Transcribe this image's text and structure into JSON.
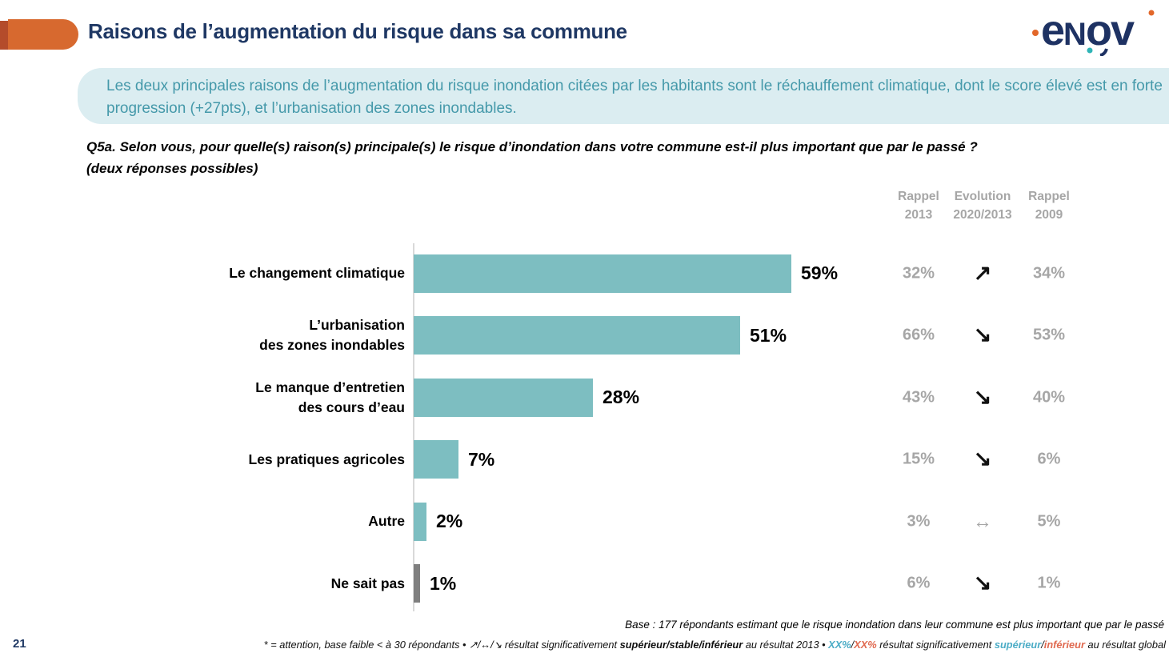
{
  "slide": {
    "title": "Raisons de l’augmentation du risque dans sa commune",
    "page_number": "21"
  },
  "logo": {
    "name": "enov",
    "navy": "#1E3263",
    "orange": "#E2672A",
    "teal": "#2FB4B6"
  },
  "summary": {
    "text": "Les deux principales raisons de l’augmentation du risque inondation citées par les habitants sont le réchauffement climatique, dont le score élevé est en forte progression (+27pts), et l’urbanisation des zones inondables."
  },
  "question": {
    "line1": "Q5a. Selon vous, pour quelle(s) raison(s) principale(s) le risque d’inondation dans votre commune est-il plus important que par le passé ?",
    "line2": "(deux réponses possibles)"
  },
  "table_headers": [
    {
      "line1": "Rappel",
      "line2": "2013"
    },
    {
      "line1": "Evolution",
      "line2": "2020/2013"
    },
    {
      "line1": "Rappel",
      "line2": "2009"
    }
  ],
  "chart_data": {
    "type": "bar",
    "orientation": "horizontal",
    "title": "Q5a. Raisons principales de l’augmentation du risque d’inondation",
    "categories": [
      "Le changement climatique",
      "L’urbanisation des zones inondables",
      "Le manque d’entretien des cours d’eau",
      "Les pratiques agricoles",
      "Autre",
      "Ne sait pas"
    ],
    "values": [
      59,
      51,
      28,
      7,
      2,
      1
    ],
    "value_labels": [
      "59%",
      "51%",
      "28%",
      "7%",
      "2%",
      "1%"
    ],
    "series": [
      {
        "name": "2020",
        "values": [
          59,
          51,
          28,
          7,
          2,
          1
        ]
      },
      {
        "name": "Rappel 2013",
        "values": [
          32,
          66,
          43,
          15,
          3,
          6
        ]
      },
      {
        "name": "Rappel 2009",
        "values": [
          34,
          53,
          40,
          6,
          5,
          1
        ]
      }
    ],
    "evolution_2020_vs_2013": [
      "up",
      "down",
      "down",
      "down",
      "stable",
      "down"
    ],
    "xlim": [
      0,
      62
    ],
    "grid": false,
    "bar_color": "#7DBEC1",
    "bar_color_last": "#7F7F7F",
    "xlabel": "",
    "ylabel": ""
  },
  "rows": [
    {
      "label1": "Le changement climatique",
      "label2": "",
      "pct": "59%",
      "bar_class": "bar teal",
      "r2013": "32%",
      "evo": "↗",
      "evo_class": "evo up",
      "r2009": "34%"
    },
    {
      "label1": "L’urbanisation",
      "label2": "des zones inondables",
      "pct": "51%",
      "bar_class": "bar teal",
      "r2013": "66%",
      "evo": "↘",
      "evo_class": "evo down",
      "r2009": "53%"
    },
    {
      "label1": "Le manque d’entretien",
      "label2": "des cours d’eau",
      "pct": "28%",
      "bar_class": "bar teal",
      "r2013": "43%",
      "evo": "↘",
      "evo_class": "evo down",
      "r2009": "40%"
    },
    {
      "label1": "Les pratiques agricoles",
      "label2": "",
      "pct": "7%",
      "bar_class": "bar teal",
      "r2013": "15%",
      "evo": "↘",
      "evo_class": "evo down",
      "r2009": "6%"
    },
    {
      "label1": "Autre",
      "label2": "",
      "pct": "2%",
      "bar_class": "bar teal",
      "r2013": "3%",
      "evo": "↔",
      "evo_class": "evo stable",
      "r2009": "5%"
    },
    {
      "label1": "Ne sait pas",
      "label2": "",
      "pct": "1%",
      "bar_class": "bar gray",
      "r2013": "6%",
      "evo": "↘",
      "evo_class": "evo down",
      "r2009": "1%"
    }
  ],
  "footer": {
    "base": "Base : 177 répondants estimant que le risque inondation dans leur commune est plus important que par le passé",
    "page_number": "21",
    "legend_segments": [
      {
        "t": "* = attention, base faible < à 30 répondants • ",
        "s": "p"
      },
      {
        "t": "↗/↔/↘",
        "s": "p"
      },
      {
        "t": " résultat significativement ",
        "s": "p"
      },
      {
        "t": "supérieur/stable/",
        "s": "b"
      },
      {
        "t": "inférieur",
        "s": "b"
      },
      {
        "t": " au résultat 2013 • ",
        "s": "p"
      },
      {
        "t": "XX%",
        "s": "t"
      },
      {
        "t": "/",
        "s": "p"
      },
      {
        "t": "XX%",
        "s": "s"
      },
      {
        "t": " résultat significativement ",
        "s": "p"
      },
      {
        "t": "supérieur",
        "s": "t"
      },
      {
        "t": "/",
        "s": "p"
      },
      {
        "t": "inférieur",
        "s": "s"
      },
      {
        "t": " au résultat global",
        "s": "p"
      }
    ]
  }
}
